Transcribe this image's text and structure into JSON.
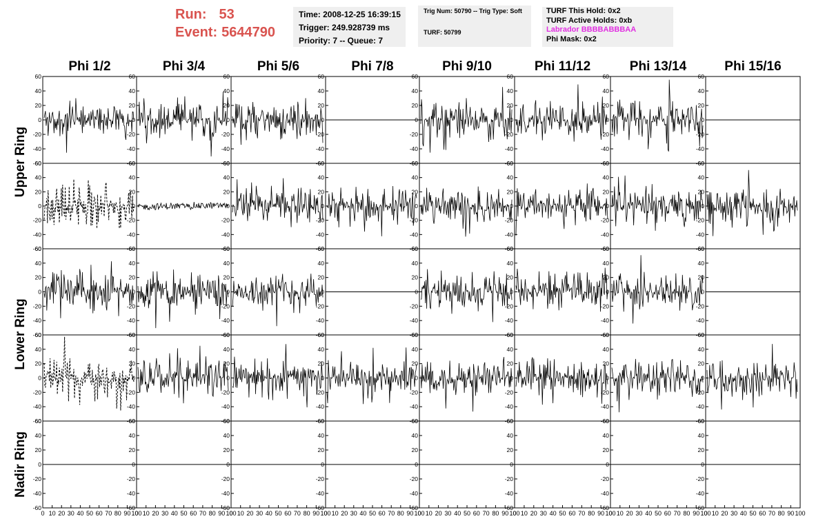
{
  "header": {
    "run_label": "Run:",
    "run_value": "53",
    "event_label": "Event:",
    "event_value": "5644790",
    "time": "Time: 2008-12-25 16:39:15",
    "trigger": "Trigger: 249.928739 ms",
    "priority": "Priority: 7 -- Queue: 7",
    "trig_num": "Trig Num: 50790 -- Trig Type: Soft",
    "turf": "TURF: 50799",
    "turf_this_hold": "TURF This Hold: 0x2",
    "turf_active_holds": "TURF Active Holds: 0xb",
    "labrador": "Labrador BBBBABBBAA",
    "phi_mask": "Phi Mask: 0x2"
  },
  "columns": [
    "Phi 1/2",
    "Phi 3/4",
    "Phi 5/6",
    "Phi 7/8",
    "Phi 9/10",
    "Phi 11/12",
    "Phi 13/14",
    "Phi 15/16"
  ],
  "rows": [
    "Upper Ring",
    "Lower Ring",
    "Nadir Ring"
  ],
  "y_ticks": [
    "60",
    "40",
    "20",
    "0",
    "-20",
    "-40",
    "-60"
  ],
  "x_ticks": [
    "0",
    "10",
    "20",
    "30",
    "40",
    "50",
    "60",
    "70",
    "80",
    "90",
    "100"
  ],
  "panel_states": [
    [
      "noise",
      "noise",
      "noise",
      "flat",
      "noise",
      "noise",
      "noise",
      "flat"
    ],
    [
      "dashed",
      "small",
      "noise",
      "noise",
      "noise",
      "noise",
      "noise",
      "noise"
    ],
    [
      "noise",
      "noise",
      "noise",
      "flat",
      "noise",
      "noise",
      "noise",
      "flat"
    ],
    [
      "dashed",
      "noise",
      "noise",
      "noise",
      "noise",
      "noise",
      "noise",
      "noise"
    ],
    [
      "flat",
      "flat",
      "flat",
      "flat",
      "flat",
      "flat",
      "flat",
      "flat"
    ]
  ]
}
